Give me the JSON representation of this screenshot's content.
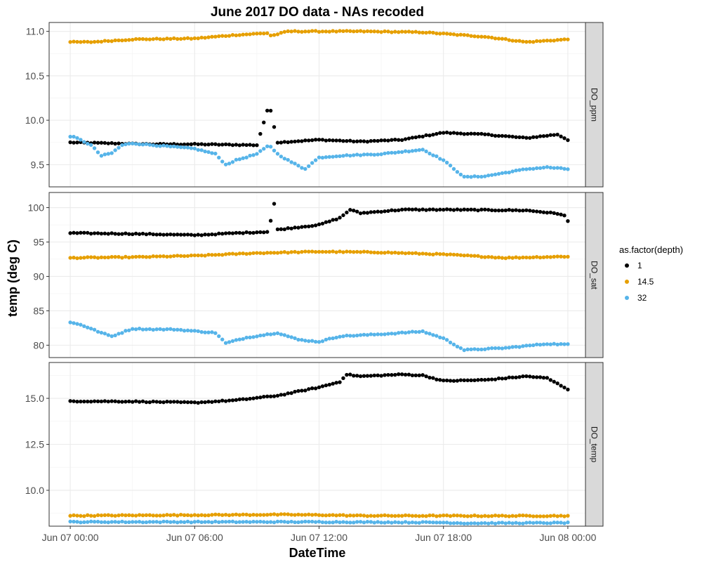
{
  "chart_data": {
    "type": "scatter",
    "title": "June 2017 DO data - NAs recoded",
    "xlabel": "DateTime",
    "ylabel": "temp (deg C)",
    "x_unit": "date-time",
    "xlim": [
      "2017-06-07 00:00",
      "2017-06-08 00:00"
    ],
    "x_ticks": [
      "Jun 07 00:00",
      "Jun 07 06:00",
      "Jun 07 12:00",
      "Jun 07 18:00",
      "Jun 08 00:00"
    ],
    "x_tick_hours": [
      0,
      6,
      12,
      18,
      24
    ],
    "legend": {
      "title": "as.factor(depth)",
      "placement": "right",
      "entries": [
        {
          "label": "1",
          "color": "#000000"
        },
        {
          "label": "14.5",
          "color": "#E69F00"
        },
        {
          "label": "32",
          "color": "#56B4E9"
        }
      ]
    },
    "facets": [
      {
        "strip": "DO_ppm",
        "ylim": [
          9.25,
          11.1
        ],
        "y_ticks": [
          9.5,
          10.0,
          10.5,
          11.0
        ],
        "y_tick_labels": [
          "9.5",
          "10.0",
          "10.5",
          "11.0"
        ],
        "series": [
          {
            "name": "1",
            "color": "#000000",
            "knots": [
              [
                0,
                9.75
              ],
              [
                4,
                9.73
              ],
              [
                6,
                9.73
              ],
              [
                9,
                9.72
              ],
              [
                9.6,
                10.18
              ],
              [
                10,
                9.75
              ],
              [
                12,
                9.78
              ],
              [
                14,
                9.76
              ],
              [
                16,
                9.78
              ],
              [
                18,
                9.86
              ],
              [
                20,
                9.84
              ],
              [
                22,
                9.8
              ],
              [
                23.5,
                9.84
              ],
              [
                24,
                9.78
              ]
            ]
          },
          {
            "name": "14.5",
            "color": "#E69F00",
            "knots": [
              [
                0,
                10.88
              ],
              [
                1,
                10.88
              ],
              [
                3,
                10.91
              ],
              [
                6,
                10.92
              ],
              [
                8,
                10.96
              ],
              [
                9.5,
                10.98
              ],
              [
                9.7,
                10.95
              ],
              [
                10.5,
                11.0
              ],
              [
                14,
                11.0
              ],
              [
                17,
                10.99
              ],
              [
                20,
                10.94
              ],
              [
                22,
                10.88
              ],
              [
                24,
                10.91
              ]
            ]
          },
          {
            "name": "32",
            "color": "#56B4E9",
            "knots": [
              [
                0,
                9.82
              ],
              [
                0.3,
                9.8
              ],
              [
                1,
                9.72
              ],
              [
                1.5,
                9.6
              ],
              [
                2,
                9.63
              ],
              [
                2.5,
                9.72
              ],
              [
                3,
                9.74
              ],
              [
                4,
                9.72
              ],
              [
                6,
                9.68
              ],
              [
                7,
                9.62
              ],
              [
                7.5,
                9.5
              ],
              [
                8,
                9.55
              ],
              [
                9,
                9.62
              ],
              [
                9.6,
                9.72
              ],
              [
                10,
                9.62
              ],
              [
                10.5,
                9.55
              ],
              [
                11.3,
                9.45
              ],
              [
                12,
                9.58
              ],
              [
                13,
                9.6
              ],
              [
                15,
                9.62
              ],
              [
                17,
                9.67
              ],
              [
                18,
                9.55
              ],
              [
                19,
                9.36
              ],
              [
                20,
                9.37
              ],
              [
                21,
                9.41
              ],
              [
                22,
                9.45
              ],
              [
                23,
                9.47
              ],
              [
                24,
                9.45
              ]
            ]
          }
        ]
      },
      {
        "strip": "DO_sat",
        "ylim": [
          78.2,
          102.2
        ],
        "y_ticks": [
          80,
          85,
          90,
          95,
          100
        ],
        "y_tick_labels": [
          "80",
          "85",
          "90",
          "95",
          "100"
        ],
        "series": [
          {
            "name": "1",
            "color": "#000000",
            "knots": [
              [
                0,
                96.3
              ],
              [
                3,
                96.2
              ],
              [
                6,
                96.0
              ],
              [
                8,
                96.3
              ],
              [
                9.6,
                96.5
              ],
              [
                9.8,
                101.3
              ],
              [
                10,
                96.8
              ],
              [
                12,
                97.5
              ],
              [
                13,
                98.5
              ],
              [
                13.5,
                99.7
              ],
              [
                14,
                99.2
              ],
              [
                16,
                99.7
              ],
              [
                18,
                99.7
              ],
              [
                22,
                99.6
              ],
              [
                23,
                99.3
              ],
              [
                23.8,
                99.0
              ],
              [
                24,
                98.0
              ]
            ]
          },
          {
            "name": "14.5",
            "color": "#E69F00",
            "knots": [
              [
                0,
                92.7
              ],
              [
                3,
                92.8
              ],
              [
                6,
                93.0
              ],
              [
                9,
                93.4
              ],
              [
                12,
                93.6
              ],
              [
                15,
                93.5
              ],
              [
                18,
                93.2
              ],
              [
                21,
                92.7
              ],
              [
                24,
                92.9
              ]
            ]
          },
          {
            "name": "32",
            "color": "#56B4E9",
            "knots": [
              [
                0,
                83.3
              ],
              [
                0.5,
                83.0
              ],
              [
                1,
                82.4
              ],
              [
                1.5,
                81.8
              ],
              [
                2,
                81.3
              ],
              [
                3,
                82.4
              ],
              [
                4,
                82.3
              ],
              [
                5,
                82.3
              ],
              [
                7,
                81.8
              ],
              [
                7.5,
                80.3
              ],
              [
                8.5,
                81.1
              ],
              [
                10,
                81.8
              ],
              [
                11,
                80.8
              ],
              [
                12,
                80.5
              ],
              [
                13,
                81.3
              ],
              [
                15,
                81.6
              ],
              [
                17,
                82.0
              ],
              [
                18,
                81.0
              ],
              [
                19,
                79.3
              ],
              [
                21,
                79.6
              ],
              [
                23,
                80.2
              ],
              [
                24,
                80.1
              ]
            ]
          }
        ]
      },
      {
        "strip": "DO_temp",
        "ylim": [
          8.05,
          16.95
        ],
        "y_ticks": [
          10.0,
          12.5,
          15.0
        ],
        "y_tick_labels": [
          "10.0",
          "12.5",
          "15.0"
        ],
        "series": [
          {
            "name": "1",
            "color": "#000000",
            "knots": [
              [
                0,
                14.85
              ],
              [
                3,
                14.83
              ],
              [
                6,
                14.77
              ],
              [
                8,
                14.9
              ],
              [
                10,
                15.15
              ],
              [
                12,
                15.6
              ],
              [
                13,
                15.9
              ],
              [
                13.3,
                16.3
              ],
              [
                14,
                16.2
              ],
              [
                16,
                16.3
              ],
              [
                17,
                16.25
              ],
              [
                18,
                15.95
              ],
              [
                20,
                16.0
              ],
              [
                21,
                16.1
              ],
              [
                22,
                16.2
              ],
              [
                23,
                16.1
              ],
              [
                24,
                15.5
              ]
            ]
          },
          {
            "name": "14.5",
            "color": "#E69F00",
            "knots": [
              [
                0,
                8.62
              ],
              [
                10,
                8.68
              ],
              [
                12,
                8.66
              ],
              [
                14,
                8.62
              ],
              [
                20,
                8.61
              ],
              [
                24,
                8.61
              ]
            ]
          },
          {
            "name": "32",
            "color": "#56B4E9",
            "knots": [
              [
                0,
                8.28
              ],
              [
                12,
                8.28
              ],
              [
                18,
                8.25
              ],
              [
                19,
                8.21
              ],
              [
                24,
                8.23
              ]
            ]
          }
        ]
      }
    ]
  }
}
